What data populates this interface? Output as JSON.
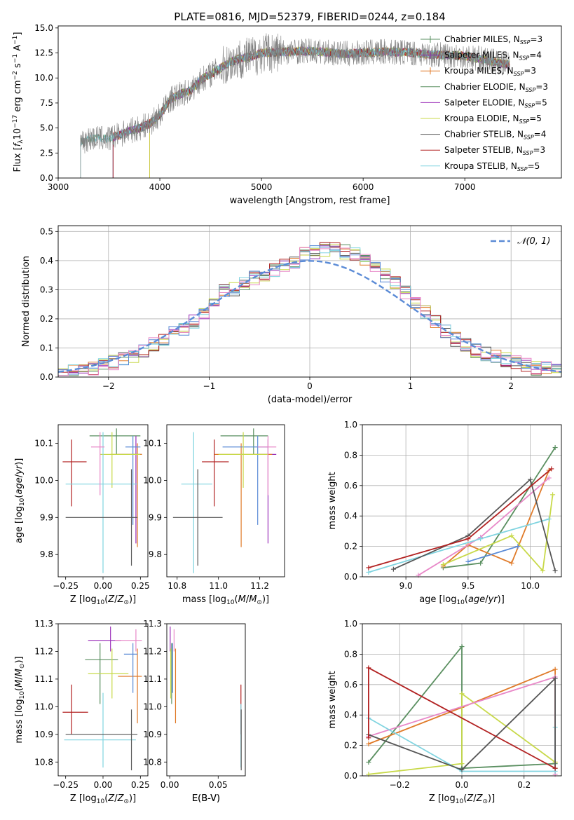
{
  "figure": {
    "title": "PLATE=0816, MJD=52379, FIBERID=0244, z=0.184"
  },
  "colors": [
    "#5a8f60",
    "#8b2fb5",
    "#e07b2a",
    "#5a8f60",
    "#9b30b9",
    "#c8d94a",
    "#555555",
    "#b22222",
    "#80d4e0"
  ],
  "chart_data": [
    {
      "id": "spectrum",
      "type": "line",
      "title": "PLATE=0816, MJD=52379, FIBERID=0244, z=0.184",
      "xlabel": "wavelength [Angstrom, rest frame]",
      "ylabel": "Flux [f_λ 10^-17 erg cm^-2 s^-1 A^-1]",
      "xlim": [
        3000,
        7950
      ],
      "ylim": [
        0,
        15.2
      ],
      "xticks": [
        3000,
        4000,
        5000,
        6000,
        7000
      ],
      "yticks": [
        0.0,
        2.5,
        5.0,
        7.5,
        10.0,
        12.5,
        15.0
      ],
      "ytick_labels": [
        "0.0",
        "2.5",
        "5.0",
        "7.5",
        "10.0",
        "12.5",
        "15.0"
      ],
      "legend_position": "top-right",
      "legend": [
        {
          "label": "Chabrier MILES, N_SSP=3",
          "color": "#5a8f60"
        },
        {
          "label": "Salpeter MILES, N_SSP=4",
          "color": "#8b2fb5"
        },
        {
          "label": "Kroupa MILES, N_SSP=3",
          "color": "#e07b2a"
        },
        {
          "label": "Chabrier ELODIE, N_SSP=3",
          "color": "#5a8f60"
        },
        {
          "label": "Salpeter ELODIE, N_SSP=5",
          "color": "#9b30b9"
        },
        {
          "label": "Kroupa ELODIE, N_SSP=5",
          "color": "#c8d94a"
        },
        {
          "label": "Chabrier STELIB, N_SSP=4",
          "color": "#555555"
        },
        {
          "label": "Salpeter STELIB, N_SSP=3",
          "color": "#b22222"
        },
        {
          "label": "Kroupa STELIB, N_SSP=5",
          "color": "#80d4e0"
        }
      ],
      "data_series": {
        "name": "data",
        "color": "#808080",
        "x": [
          3220,
          3300,
          3400,
          3500,
          3600,
          3700,
          3800,
          3900,
          4000,
          4100,
          4200,
          4300,
          4400,
          4500,
          4600,
          4700,
          4800,
          4900,
          5000,
          5200,
          5400,
          5600,
          5800,
          6000,
          6200,
          6400,
          6600,
          6800,
          7000,
          7200,
          7400
        ],
        "y": [
          3.6,
          3.9,
          4.0,
          3.9,
          4.3,
          4.7,
          5.0,
          5.4,
          6.3,
          7.8,
          8.4,
          8.7,
          9.8,
          10.4,
          11.0,
          11.6,
          12.0,
          12.1,
          12.5,
          12.6,
          12.7,
          12.6,
          12.4,
          12.5,
          12.6,
          12.6,
          12.4,
          12.3,
          12.2,
          11.8,
          11.4
        ]
      },
      "model_start_wavelengths": [
        3220,
        3540,
        3900,
        3540,
        3540,
        3900,
        3540,
        3540,
        3220
      ]
    },
    {
      "id": "residuals",
      "type": "step",
      "xlabel": "(data-model)/error",
      "ylabel": "Normed distribution",
      "xlim": [
        -2.5,
        2.5
      ],
      "ylim": [
        0,
        0.52
      ],
      "xticks": [
        -2,
        -1,
        0,
        1,
        2
      ],
      "xtick_labels": [
        "−2",
        "−1",
        "0",
        "1",
        "2"
      ],
      "yticks": [
        0.0,
        0.1,
        0.2,
        0.3,
        0.4,
        0.5
      ],
      "ytick_labels": [
        "0.0",
        "0.1",
        "0.2",
        "0.3",
        "0.4",
        "0.5"
      ],
      "grid": true,
      "legend_position": "top-right",
      "gaussian": {
        "label": "𝒩(0, 1)",
        "color": "#5b8bd6",
        "mean": 0,
        "sigma": 1
      },
      "bin_edges": [
        -2.5,
        -2.4,
        -2.3,
        -2.2,
        -2.1,
        -2.0,
        -1.9,
        -1.8,
        -1.7,
        -1.6,
        -1.5,
        -1.4,
        -1.3,
        -1.2,
        -1.1,
        -1.0,
        -0.9,
        -0.8,
        -0.7,
        -0.6,
        -0.5,
        -0.4,
        -0.3,
        -0.2,
        -0.1,
        0.0,
        0.1,
        0.2,
        0.3,
        0.4,
        0.5,
        0.6,
        0.7,
        0.8,
        0.9,
        1.0,
        1.1,
        1.2,
        1.3,
        1.4,
        1.5,
        1.6,
        1.7,
        1.8,
        1.9,
        2.0,
        2.1,
        2.2,
        2.3,
        2.4,
        2.5
      ],
      "histogram": [
        0.02,
        0.02,
        0.03,
        0.03,
        0.04,
        0.05,
        0.06,
        0.07,
        0.09,
        0.11,
        0.13,
        0.15,
        0.16,
        0.19,
        0.22,
        0.25,
        0.3,
        0.3,
        0.32,
        0.34,
        0.35,
        0.37,
        0.38,
        0.4,
        0.42,
        0.43,
        0.44,
        0.44,
        0.43,
        0.42,
        0.4,
        0.38,
        0.35,
        0.32,
        0.29,
        0.25,
        0.22,
        0.19,
        0.16,
        0.13,
        0.11,
        0.09,
        0.08,
        0.07,
        0.06,
        0.05,
        0.04,
        0.03,
        0.03,
        0.02
      ]
    },
    {
      "id": "age-vs-z",
      "type": "errorbar",
      "xlabel": "Z [log10(Z/Z⊙)]",
      "ylabel": "age [log10(age/yr)]",
      "xlim": [
        -0.3,
        0.3
      ],
      "ylim": [
        9.74,
        10.15
      ],
      "xticks": [
        -0.25,
        0.0,
        0.25
      ],
      "xtick_labels": [
        "−0.25",
        "0.00",
        "0.25"
      ],
      "yticks": [
        9.8,
        9.9,
        10.0,
        10.1
      ],
      "ytick_labels": [
        "9.8",
        "9.9",
        "10.0",
        "10.1"
      ],
      "points": [
        {
          "x": 0.09,
          "y": 10.12,
          "xlo": -0.09,
          "xhi": 0.25,
          "ylo": 10.07,
          "yhi": 10.14,
          "color": "#5a8f60"
        },
        {
          "x": 0.22,
          "y": 10.07,
          "xlo": 0.1,
          "xhi": 0.26,
          "ylo": 9.83,
          "yhi": 10.12,
          "color": "#9b30b9"
        },
        {
          "x": 0.23,
          "y": 10.07,
          "xlo": 0.05,
          "xhi": 0.26,
          "ylo": 9.82,
          "yhi": 10.1,
          "color": "#e07b2a"
        },
        {
          "x": 0.2,
          "y": 10.09,
          "xlo": 0.15,
          "xhi": 0.25,
          "ylo": 9.88,
          "yhi": 10.12,
          "color": "#5b8bd6"
        },
        {
          "x": 0.06,
          "y": 10.07,
          "xlo": -0.02,
          "xhi": 0.25,
          "ylo": 9.98,
          "yhi": 10.13,
          "color": "#c8d94a"
        },
        {
          "x": -0.21,
          "y": 10.05,
          "xlo": -0.27,
          "xhi": -0.11,
          "ylo": 9.93,
          "yhi": 10.11,
          "color": "#b22222"
        },
        {
          "x": 0.0,
          "y": 9.99,
          "xlo": -0.25,
          "xhi": 0.23,
          "ylo": 9.75,
          "yhi": 10.13,
          "color": "#80d4e0"
        },
        {
          "x": -0.02,
          "y": 10.09,
          "xlo": -0.08,
          "xhi": 0.01,
          "ylo": 9.96,
          "yhi": 10.13,
          "color": "#e888c8"
        },
        {
          "x": 0.19,
          "y": 9.9,
          "xlo": -0.25,
          "xhi": 0.23,
          "ylo": 9.77,
          "yhi": 10.03,
          "color": "#555555"
        }
      ]
    },
    {
      "id": "age-vs-mass",
      "type": "errorbar",
      "xlabel": "mass [log10(M/M⊙)]",
      "ylabel": "",
      "xlim": [
        10.75,
        11.32
      ],
      "ylim": [
        9.74,
        10.15
      ],
      "xticks": [
        10.8,
        11.0,
        11.2
      ],
      "xtick_labels": [
        "10.8",
        "11.0",
        "11.2"
      ],
      "yticks": [
        9.8,
        9.9,
        10.0,
        10.1
      ],
      "ytick_labels": [
        "9.8",
        "9.9",
        "10.0",
        "10.1"
      ],
      "points": [
        {
          "x": 11.17,
          "y": 10.12,
          "xlo": 11.01,
          "xhi": 11.24,
          "ylo": 10.07,
          "yhi": 10.14,
          "color": "#5a8f60"
        },
        {
          "x": 11.24,
          "y": 10.07,
          "xlo": 11.18,
          "xhi": 11.28,
          "ylo": 9.83,
          "yhi": 10.11,
          "color": "#9b30b9"
        },
        {
          "x": 11.11,
          "y": 10.07,
          "xlo": 10.98,
          "xhi": 11.26,
          "ylo": 9.82,
          "yhi": 10.1,
          "color": "#e07b2a"
        },
        {
          "x": 11.19,
          "y": 10.09,
          "xlo": 11.02,
          "xhi": 11.24,
          "ylo": 9.88,
          "yhi": 10.12,
          "color": "#5b8bd6"
        },
        {
          "x": 11.12,
          "y": 10.07,
          "xlo": 11.0,
          "xhi": 11.24,
          "ylo": 9.98,
          "yhi": 10.13,
          "color": "#c8d94a"
        },
        {
          "x": 10.98,
          "y": 10.05,
          "xlo": 10.92,
          "xhi": 11.05,
          "ylo": 9.93,
          "yhi": 10.11,
          "color": "#b22222"
        },
        {
          "x": 10.88,
          "y": 9.99,
          "xlo": 10.82,
          "xhi": 10.97,
          "ylo": 9.75,
          "yhi": 10.13,
          "color": "#80d4e0"
        },
        {
          "x": 11.24,
          "y": 10.09,
          "xlo": 11.19,
          "xhi": 11.28,
          "ylo": 9.96,
          "yhi": 10.12,
          "color": "#e888c8"
        },
        {
          "x": 10.9,
          "y": 9.9,
          "xlo": 10.78,
          "xhi": 11.02,
          "ylo": 9.77,
          "yhi": 10.03,
          "color": "#555555"
        }
      ]
    },
    {
      "id": "mass-weight-vs-age",
      "type": "line",
      "xlabel": "age [log10(age/yr)]",
      "ylabel": "mass weight",
      "xlim": [
        8.65,
        10.25
      ],
      "ylim": [
        0,
        1
      ],
      "xticks": [
        9.0,
        9.5,
        10.0
      ],
      "xtick_labels": [
        "9.0",
        "9.5",
        "10.0"
      ],
      "yticks": [
        0.0,
        0.2,
        0.4,
        0.6,
        0.8,
        1.0
      ],
      "ytick_labels": [
        "0.0",
        "0.2",
        "0.4",
        "0.6",
        "0.8",
        "1.0"
      ],
      "grid": true,
      "series": [
        {
          "color": "#5a8f60",
          "x": [
            9.3,
            9.6,
            10.2
          ],
          "y": [
            0.06,
            0.09,
            0.85
          ]
        },
        {
          "color": "#e07b2a",
          "x": [
            9.3,
            9.5,
            9.85,
            10.15
          ],
          "y": [
            0.07,
            0.21,
            0.09,
            0.7
          ]
        },
        {
          "color": "#5b8bd6",
          "x": [
            9.5,
            9.9
          ],
          "y": [
            0.1,
            0.2
          ]
        },
        {
          "color": "#c8d94a",
          "x": [
            9.3,
            9.85,
            10.1,
            10.18
          ],
          "y": [
            0.08,
            0.27,
            0.04,
            0.54
          ]
        },
        {
          "color": "#e888c8",
          "x": [
            9.1,
            9.6,
            10.15
          ],
          "y": [
            0.01,
            0.26,
            0.65
          ]
        },
        {
          "color": "#80d4e0",
          "x": [
            8.7,
            9.6,
            10.15
          ],
          "y": [
            0.03,
            0.25,
            0.38
          ]
        },
        {
          "color": "#555555",
          "x": [
            8.9,
            9.5,
            10.0,
            10.2
          ],
          "y": [
            0.05,
            0.27,
            0.64,
            0.04
          ]
        },
        {
          "color": "#b22222",
          "x": [
            8.7,
            9.5,
            10.17
          ],
          "y": [
            0.06,
            0.25,
            0.71
          ]
        }
      ]
    },
    {
      "id": "mass-vs-z",
      "type": "errorbar",
      "xlabel": "Z [log10(Z/Z⊙)]",
      "ylabel": "mass [log10(M/M⊙)]",
      "xlim": [
        -0.3,
        0.3
      ],
      "ylim": [
        10.75,
        11.3
      ],
      "xticks": [
        -0.25,
        0.0,
        0.25
      ],
      "xtick_labels": [
        "−0.25",
        "0.00",
        "0.25"
      ],
      "yticks": [
        10.8,
        10.9,
        11.0,
        11.1,
        11.2,
        11.3
      ],
      "ytick_labels": [
        "10.8",
        "10.9",
        "11.0",
        "11.1",
        "11.2",
        "11.3"
      ],
      "points": [
        {
          "x": -0.02,
          "y": 11.17,
          "xlo": -0.12,
          "xhi": 0.1,
          "ylo": 11.01,
          "yhi": 11.23,
          "color": "#5a8f60"
        },
        {
          "x": 0.05,
          "y": 11.24,
          "xlo": -0.1,
          "xhi": 0.12,
          "ylo": 11.2,
          "yhi": 11.29,
          "color": "#9b30b9"
        },
        {
          "x": 0.23,
          "y": 11.11,
          "xlo": 0.1,
          "xhi": 0.26,
          "ylo": 10.94,
          "yhi": 11.21,
          "color": "#e07b2a"
        },
        {
          "x": 0.2,
          "y": 11.19,
          "xlo": 0.14,
          "xhi": 0.23,
          "ylo": 11.05,
          "yhi": 11.23,
          "color": "#5b8bd6"
        },
        {
          "x": 0.06,
          "y": 11.12,
          "xlo": -0.1,
          "xhi": 0.17,
          "ylo": 11.03,
          "yhi": 11.21,
          "color": "#c8d94a"
        },
        {
          "x": -0.21,
          "y": 10.98,
          "xlo": -0.27,
          "xhi": -0.1,
          "ylo": 10.9,
          "yhi": 11.08,
          "color": "#b22222"
        },
        {
          "x": 0.0,
          "y": 10.88,
          "xlo": -0.26,
          "xhi": 0.22,
          "ylo": 10.78,
          "yhi": 11.05,
          "color": "#80d4e0"
        },
        {
          "x": 0.22,
          "y": 11.24,
          "xlo": 0.08,
          "xhi": 0.26,
          "ylo": 11.2,
          "yhi": 11.28,
          "color": "#e888c8"
        },
        {
          "x": 0.19,
          "y": 10.9,
          "xlo": -0.25,
          "xhi": 0.23,
          "ylo": 10.77,
          "yhi": 10.99,
          "color": "#555555"
        }
      ]
    },
    {
      "id": "mass-vs-ebv",
      "type": "errorbar",
      "xlabel": "E(B-V)",
      "ylabel": "",
      "xlim": [
        -0.003,
        0.078
      ],
      "ylim": [
        10.75,
        11.3
      ],
      "xticks": [
        0.0,
        0.05
      ],
      "xtick_labels": [
        "0.00",
        "0.05"
      ],
      "yticks": [
        10.8,
        10.9,
        11.0,
        11.1,
        11.2,
        11.3
      ],
      "ytick_labels": [
        "10.8",
        "10.9",
        "11.0",
        "11.1",
        "11.2",
        "11.3"
      ],
      "points": [
        {
          "x": 0.002,
          "y": 11.17,
          "ylo": 11.01,
          "yhi": 11.23,
          "color": "#5a8f60"
        },
        {
          "x": 0.0005,
          "y": 11.24,
          "ylo": 11.2,
          "yhi": 11.29,
          "color": "#9b30b9"
        },
        {
          "x": 0.006,
          "y": 11.11,
          "ylo": 10.94,
          "yhi": 11.21,
          "color": "#e07b2a"
        },
        {
          "x": 0.003,
          "y": 11.19,
          "ylo": 11.05,
          "yhi": 11.23,
          "color": "#5b8bd6"
        },
        {
          "x": 0.001,
          "y": 11.12,
          "ylo": 11.03,
          "yhi": 11.21,
          "color": "#c8d94a"
        },
        {
          "x": 0.0735,
          "y": 10.98,
          "ylo": 10.9,
          "yhi": 11.08,
          "color": "#b22222"
        },
        {
          "x": 0.0735,
          "y": 10.88,
          "ylo": 10.78,
          "yhi": 11.01,
          "color": "#80d4e0"
        },
        {
          "x": 0.0045,
          "y": 11.24,
          "ylo": 11.2,
          "yhi": 11.28,
          "color": "#e888c8"
        },
        {
          "x": 0.0738,
          "y": 10.9,
          "ylo": 10.77,
          "yhi": 10.99,
          "color": "#555555"
        }
      ]
    },
    {
      "id": "mass-weight-vs-z",
      "type": "line",
      "xlabel": "Z [log10(Z/Z⊙)]",
      "ylabel": "mass weight",
      "xlim": [
        -0.32,
        0.32
      ],
      "ylim": [
        0,
        1
      ],
      "xticks": [
        -0.2,
        0.0,
        0.2
      ],
      "xtick_labels": [
        "−0.2",
        "0.0",
        "0.2"
      ],
      "yticks": [
        0.0,
        0.2,
        0.4,
        0.6,
        0.8,
        1.0
      ],
      "ytick_labels": [
        "0.0",
        "0.2",
        "0.4",
        "0.6",
        "0.8",
        "1.0"
      ],
      "grid": true,
      "series": [
        {
          "color": "#5a8f60",
          "x": [
            -0.3,
            0.0,
            0.0,
            0.3
          ],
          "y": [
            0.09,
            0.85,
            0.05,
            0.08
          ]
        },
        {
          "color": "#e07b2a",
          "x": [
            -0.3,
            0.0,
            0.3,
            0.3
          ],
          "y": [
            0.21,
            0.45,
            0.7,
            0.09
          ]
        },
        {
          "color": "#c8d94a",
          "x": [
            -0.3,
            0.0,
            0.0,
            0.3,
            0.3
          ],
          "y": [
            0.01,
            0.08,
            0.54,
            0.09,
            0.05
          ]
        },
        {
          "color": "#e888c8",
          "x": [
            -0.3,
            0.3,
            0.3
          ],
          "y": [
            0.26,
            0.65,
            0.01
          ]
        },
        {
          "color": "#80d4e0",
          "x": [
            -0.3,
            0.0,
            0.3,
            0.3
          ],
          "y": [
            0.38,
            0.03,
            0.03,
            0.32
          ]
        },
        {
          "color": "#555555",
          "x": [
            -0.3,
            0.0,
            0.3,
            0.3
          ],
          "y": [
            0.27,
            0.04,
            0.64,
            0.05
          ]
        },
        {
          "color": "#b22222",
          "x": [
            -0.3,
            -0.3,
            0.3
          ],
          "y": [
            0.25,
            0.71,
            0.05
          ]
        }
      ]
    }
  ]
}
